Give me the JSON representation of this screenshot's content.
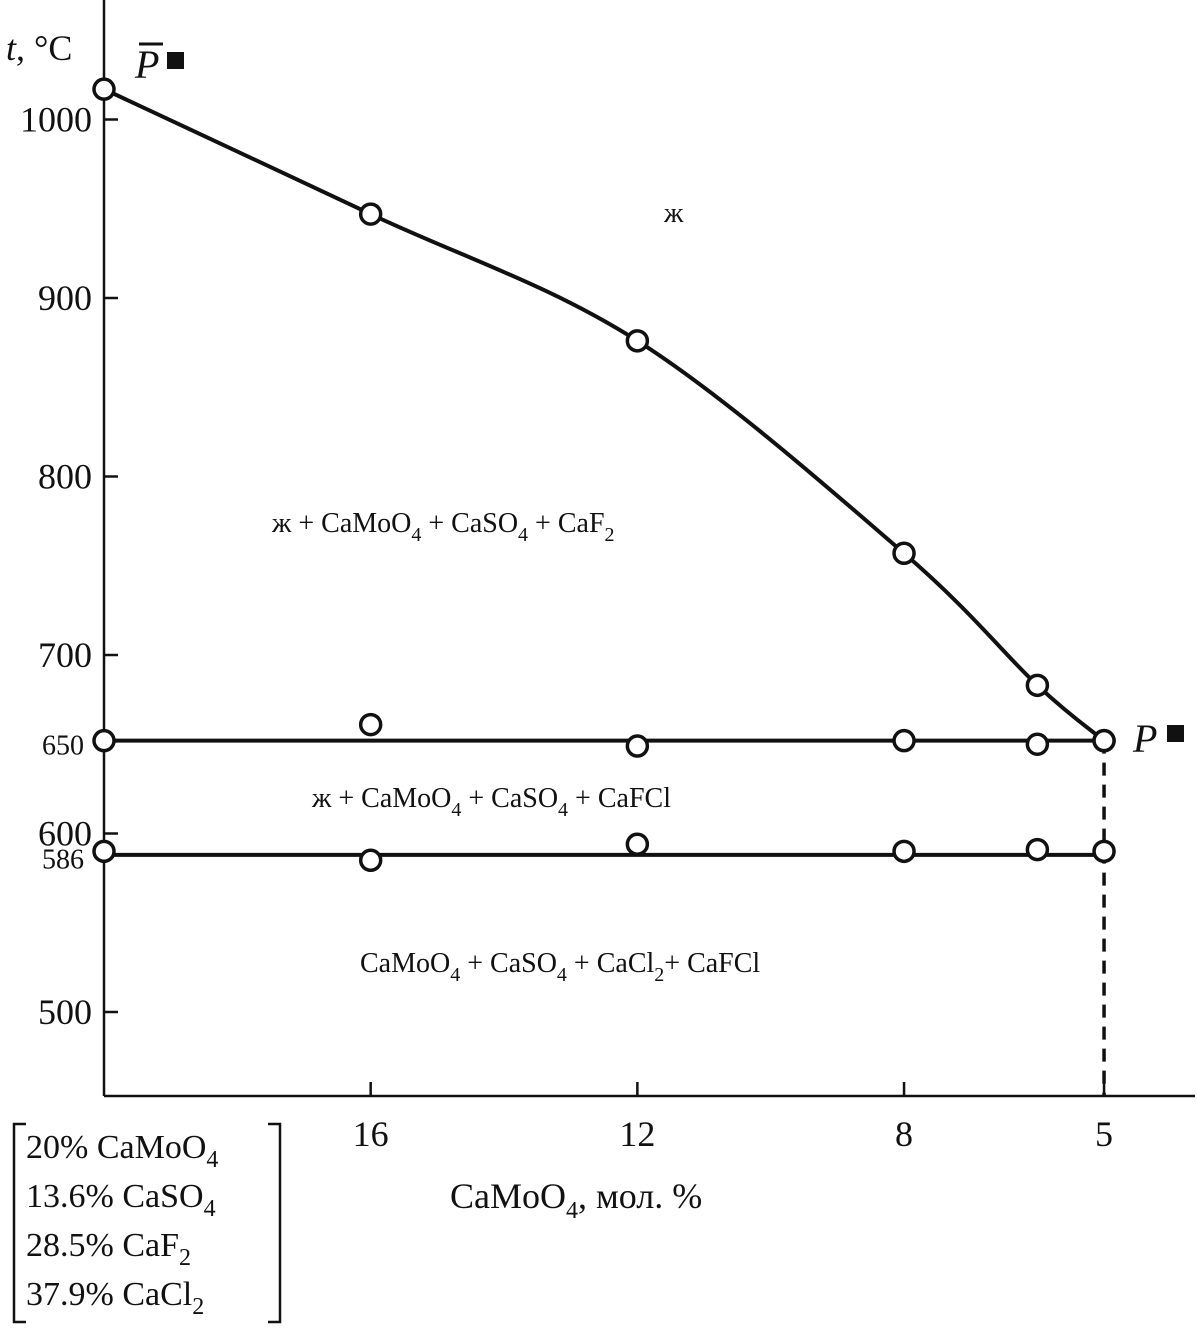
{
  "chart_data": {
    "type": "line",
    "y_unit_label": "t, °C",
    "xlabel": "CaMoO4, мол. %",
    "x_range": [
      20,
      3.5
    ],
    "y_range": [
      450,
      1060
    ],
    "x_ticks": [
      16,
      12,
      8,
      5
    ],
    "y_ticks": [
      500,
      600,
      700,
      800,
      900,
      1000
    ],
    "y_marked": [
      650,
      586
    ],
    "liquidus": [
      {
        "x": 20,
        "y": 1017
      },
      {
        "x": 16,
        "y": 947
      },
      {
        "x": 12,
        "y": 876
      },
      {
        "x": 8,
        "y": 757
      },
      {
        "x": 6,
        "y": 683
      },
      {
        "x": 5,
        "y": 652
      }
    ],
    "line_650": [
      {
        "x": 20,
        "y": 652
      },
      {
        "x": 16,
        "y": 661
      },
      {
        "x": 12,
        "y": 649
      },
      {
        "x": 8,
        "y": 652
      },
      {
        "x": 6,
        "y": 650
      },
      {
        "x": 5,
        "y": 652
      }
    ],
    "line_586": [
      {
        "x": 20,
        "y": 590
      },
      {
        "x": 16,
        "y": 585
      },
      {
        "x": 12,
        "y": 594
      },
      {
        "x": 8,
        "y": 590
      },
      {
        "x": 6,
        "y": 591
      },
      {
        "x": 5,
        "y": 590
      }
    ],
    "dashed_x": 5,
    "point_labels": {
      "p_bar": "P",
      "p": "P"
    },
    "regions": {
      "liquid": "ж",
      "r1": {
        "a": "ж + CaMoO",
        "s1": "4",
        "b": " + CaSO",
        "s2": "4",
        "c": " + CaF",
        "s3": "2"
      },
      "r2": {
        "a": "ж + CaMoO",
        "s1": "4",
        "b": " + CaSO",
        "s2": "4",
        "c": " + CaFCl"
      },
      "r3": {
        "a": "CaMoO",
        "s1": "4",
        "b": " + CaSO",
        "s2": "4",
        "c": " + CaCl",
        "s3": "2",
        "d": "+ CaFCl"
      }
    },
    "composition": [
      {
        "text": "20% CaMoO",
        "sub": "4"
      },
      {
        "text": "13.6% CaSO",
        "sub": "4"
      },
      {
        "text": "28.5% CaF",
        "sub": "2"
      },
      {
        "text": "37.9% CaCl",
        "sub": "2"
      }
    ],
    "xlabel_parts": {
      "a": "CaMoO",
      "sub": "4",
      "b": ", мол. %"
    }
  }
}
